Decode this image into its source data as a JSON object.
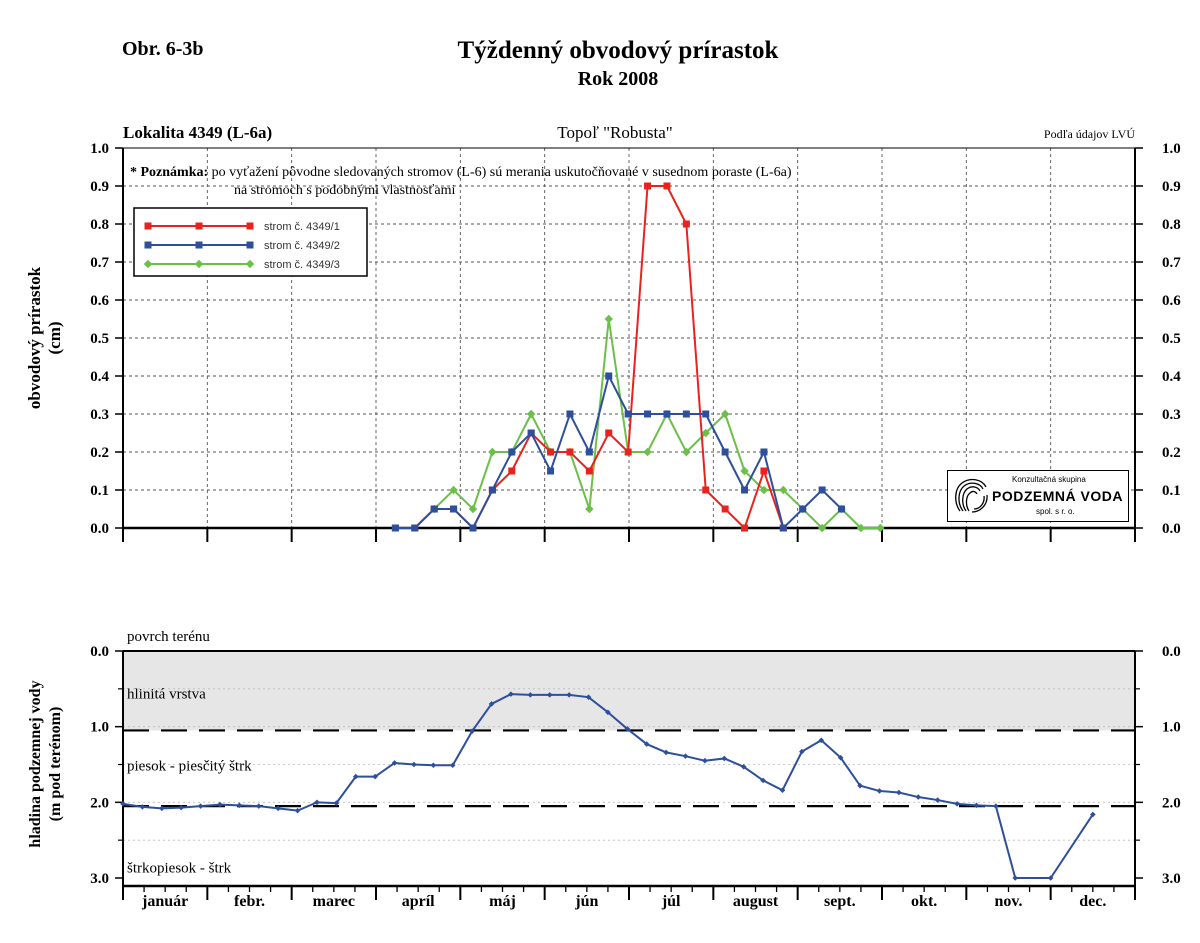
{
  "header": {
    "figure_label": "Obr. 6-3b",
    "title": "Týždenný obvodový prírastok",
    "subtitle": "Rok 2008"
  },
  "logo": {
    "small_text": "Konzultačná skupina",
    "main_text": "PODZEMNÁ VODA",
    "sub_text": "spol. s r. o."
  },
  "colors": {
    "red": "#e8231e",
    "blue": "#2e4f9c",
    "green": "#6cc04a",
    "band": "#e6e6e6"
  },
  "chart_data": [
    {
      "type": "line",
      "title_left": "Lokalita 4349 (L-6a)",
      "title_center": "Topoľ \"Robusta\"",
      "title_right": "Podľa údajov LVÚ",
      "note_bold": "* Poznámka:",
      "note_line1": "po vyťažení pôvodne sledovaných stromov (L-6) sú merania uskutočňované v susednom poraste (L-6a)",
      "note_line2": "na stromoch s podobnými vlastnosťami",
      "ylabel_line1": "obvodový prírastok",
      "ylabel_line2": "(cm)",
      "ylim": [
        0,
        1.0
      ],
      "yticks": [
        "0.0",
        "0.1",
        "0.2",
        "0.3",
        "0.4",
        "0.5",
        "0.6",
        "0.7",
        "0.8",
        "0.9",
        "1.0"
      ],
      "x_unit": "month (1 = start of January)",
      "xlim": [
        1,
        13
      ],
      "grid": true,
      "legend_position": "top-left",
      "series": [
        {
          "name": "strom č. 4349/1",
          "color": "#e8231e",
          "marker": "square",
          "points": [
            [
              4.23,
              0.0
            ],
            [
              4.46,
              0.0
            ],
            [
              4.69,
              0.05
            ],
            [
              4.92,
              0.05
            ],
            [
              5.15,
              0.0
            ],
            [
              5.38,
              0.1
            ],
            [
              5.61,
              0.15
            ],
            [
              5.84,
              0.25
            ],
            [
              6.07,
              0.2
            ],
            [
              6.3,
              0.2
            ],
            [
              6.53,
              0.15
            ],
            [
              6.76,
              0.25
            ],
            [
              6.99,
              0.2
            ],
            [
              7.22,
              0.9
            ],
            [
              7.45,
              0.9
            ],
            [
              7.68,
              0.8
            ],
            [
              7.91,
              0.1
            ],
            [
              8.14,
              0.05
            ],
            [
              8.37,
              0.0
            ],
            [
              8.6,
              0.15
            ],
            [
              8.83,
              0.0
            ]
          ]
        },
        {
          "name": "strom č. 4349/2",
          "color": "#2e4f9c",
          "marker": "square",
          "points": [
            [
              4.23,
              0.0
            ],
            [
              4.46,
              0.0
            ],
            [
              4.69,
              0.05
            ],
            [
              4.92,
              0.05
            ],
            [
              5.15,
              0.0
            ],
            [
              5.38,
              0.1
            ],
            [
              5.61,
              0.2
            ],
            [
              5.84,
              0.25
            ],
            [
              6.07,
              0.15
            ],
            [
              6.3,
              0.3
            ],
            [
              6.53,
              0.2
            ],
            [
              6.76,
              0.4
            ],
            [
              6.99,
              0.3
            ],
            [
              7.22,
              0.3
            ],
            [
              7.45,
              0.3
            ],
            [
              7.68,
              0.3
            ],
            [
              7.91,
              0.3
            ],
            [
              8.14,
              0.2
            ],
            [
              8.37,
              0.1
            ],
            [
              8.6,
              0.2
            ],
            [
              8.83,
              0.0
            ],
            [
              9.06,
              0.05
            ],
            [
              9.29,
              0.1
            ],
            [
              9.52,
              0.05
            ]
          ]
        },
        {
          "name": "strom č. 4349/3",
          "color": "#6cc04a",
          "marker": "diamond",
          "points": [
            [
              4.69,
              0.05
            ],
            [
              4.92,
              0.1
            ],
            [
              5.15,
              0.05
            ],
            [
              5.38,
              0.2
            ],
            [
              5.61,
              0.2
            ],
            [
              5.84,
              0.3
            ],
            [
              6.07,
              0.2
            ],
            [
              6.3,
              0.2
            ],
            [
              6.53,
              0.05
            ],
            [
              6.76,
              0.55
            ],
            [
              6.99,
              0.2
            ],
            [
              7.22,
              0.2
            ],
            [
              7.45,
              0.3
            ],
            [
              7.68,
              0.2
            ],
            [
              7.91,
              0.25
            ],
            [
              8.14,
              0.3
            ],
            [
              8.37,
              0.15
            ],
            [
              8.6,
              0.1
            ],
            [
              8.83,
              0.1
            ],
            [
              9.06,
              0.05
            ],
            [
              9.29,
              0.0
            ],
            [
              9.52,
              0.05
            ],
            [
              9.75,
              0.0
            ],
            [
              9.98,
              0.0
            ]
          ]
        }
      ]
    },
    {
      "type": "line",
      "ylabel_line1": "hladina podzemnej vody",
      "ylabel_line2": "(m pod terénom)",
      "ylim": [
        0,
        3.0
      ],
      "y_inverted": true,
      "yticks": [
        "0.0",
        "1.0",
        "2.0",
        "3.0"
      ],
      "x_unit": "month (1 = start of January)",
      "xlim": [
        1,
        13
      ],
      "months": [
        "január",
        "febr.",
        "marec",
        "apríl",
        "máj",
        "jún",
        "júl",
        "august",
        "sept.",
        "okt.",
        "nov.",
        "dec."
      ],
      "layers": [
        {
          "label": "povrch terénu",
          "depth": 0.0
        },
        {
          "label": "hlinitá vrstva",
          "depth": 0.55
        },
        {
          "label": "piesok - piesčitý štrk",
          "depth": 1.5
        },
        {
          "label": "štrkopiesok - štrk",
          "depth": 2.85
        }
      ],
      "shaded_band": [
        0.0,
        1.05
      ],
      "boundaries": [
        1.05,
        2.05
      ],
      "series": [
        {
          "name": "",
          "color": "#2e4f9c",
          "marker": "diamond",
          "points": [
            [
              1.0,
              2.02
            ],
            [
              1.23,
              2.06
            ],
            [
              1.46,
              2.08
            ],
            [
              1.69,
              2.07
            ],
            [
              1.92,
              2.05
            ],
            [
              2.15,
              2.03
            ],
            [
              2.38,
              2.04
            ],
            [
              2.61,
              2.05
            ],
            [
              2.84,
              2.08
            ],
            [
              3.07,
              2.11
            ],
            [
              3.3,
              2.0
            ],
            [
              3.53,
              2.01
            ],
            [
              3.76,
              1.66
            ],
            [
              3.99,
              1.66
            ],
            [
              4.22,
              1.48
            ],
            [
              4.45,
              1.5
            ],
            [
              4.68,
              1.51
            ],
            [
              4.91,
              1.51
            ],
            [
              5.14,
              1.06
            ],
            [
              5.37,
              0.7
            ],
            [
              5.6,
              0.57
            ],
            [
              5.83,
              0.58
            ],
            [
              6.06,
              0.58
            ],
            [
              6.29,
              0.58
            ],
            [
              6.52,
              0.61
            ],
            [
              6.75,
              0.81
            ],
            [
              6.98,
              1.03
            ],
            [
              7.21,
              1.23
            ],
            [
              7.44,
              1.34
            ],
            [
              7.67,
              1.39
            ],
            [
              7.9,
              1.45
            ],
            [
              8.13,
              1.42
            ],
            [
              8.36,
              1.53
            ],
            [
              8.59,
              1.71
            ],
            [
              8.82,
              1.84
            ],
            [
              9.05,
              1.33
            ],
            [
              9.28,
              1.18
            ],
            [
              9.51,
              1.41
            ],
            [
              9.74,
              1.78
            ],
            [
              9.97,
              1.85
            ],
            [
              10.2,
              1.87
            ],
            [
              10.43,
              1.93
            ],
            [
              10.66,
              1.97
            ],
            [
              10.89,
              2.02
            ],
            [
              11.12,
              2.04
            ],
            [
              11.35,
              2.05
            ],
            [
              11.58,
              3.0
            ],
            [
              12.0,
              3.0
            ],
            [
              12.5,
              2.16
            ]
          ]
        }
      ]
    }
  ]
}
